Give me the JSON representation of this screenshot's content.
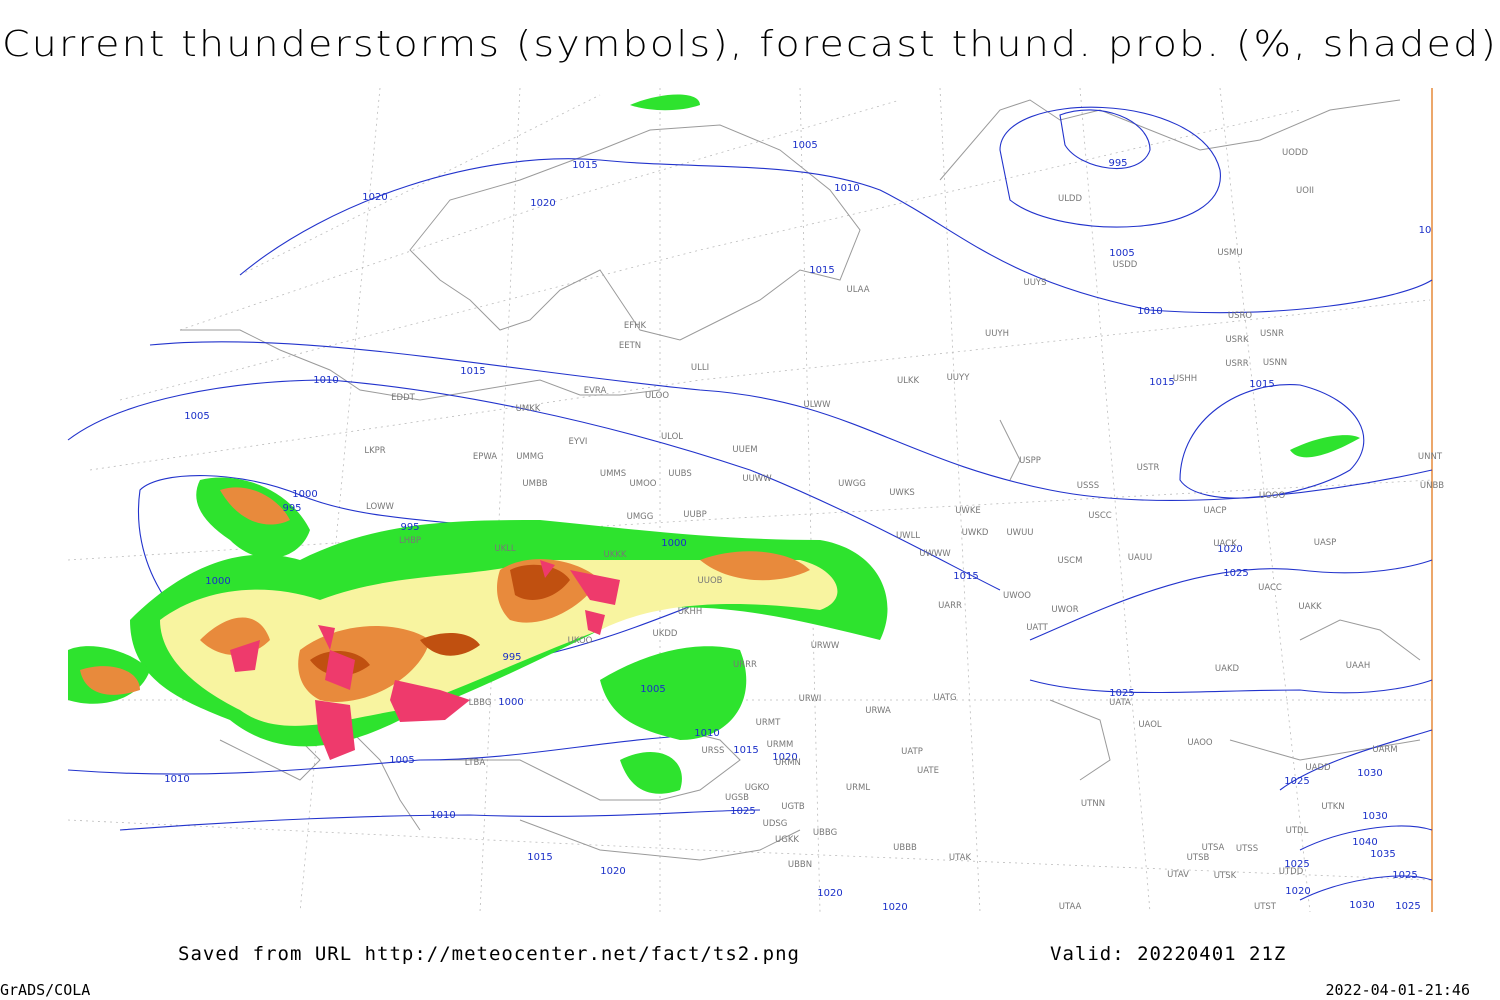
{
  "header": {
    "title": "Current thunderstorms (symbols), forecast thund. prob. (%, shaded)"
  },
  "isobar_labels": [
    "1005",
    "1015",
    "1010",
    "1020",
    "1020",
    "995",
    "1005",
    "1015",
    "1010",
    "1015",
    "1015",
    "1015",
    "1010",
    "1005",
    "1000",
    "995",
    "995",
    "1000",
    "1020",
    "1015",
    "1025",
    "1000",
    "995",
    "1005",
    "1000",
    "1010",
    "1025",
    "1015",
    "1020",
    "1005",
    "1010",
    "1025",
    "1030",
    "1010",
    "1025",
    "1030",
    "1040",
    "1035",
    "1015",
    "1025",
    "1025",
    "1020",
    "1020",
    "1020",
    "1030",
    "1025",
    "1020",
    "10"
  ],
  "stations": [
    "UODD",
    "UOII",
    "ULDD",
    "USMU",
    "USDD",
    "UUYS",
    "ULAA",
    "USRO",
    "USRK",
    "USNR",
    "UUYH",
    "USRR",
    "USNN",
    "USHH",
    "EFHK",
    "EETN",
    "ULLI",
    "ULKK",
    "UUYY",
    "EVRA",
    "ULOO",
    "EDDT",
    "UMKK",
    "ULWW",
    "EYVI",
    "ULOL",
    "UUEM",
    "LKPR",
    "EPWA",
    "UMMG",
    "UMMS",
    "UMOO",
    "UUBS",
    "UUWW",
    "USSS",
    "USTR",
    "UNNT",
    "UNBB",
    "USPP",
    "UMBB",
    "UWGG",
    "UWKS",
    "LOWW",
    "UWKE",
    "UOOO",
    "UACP",
    "UMGG",
    "UUBP",
    "USCC",
    "UWKD",
    "UWUU",
    "UWLL",
    "LHBP",
    "UACK",
    "UASP",
    "UKKK",
    "UKLL",
    "UWWW",
    "USCM",
    "UAUU",
    "UUOB",
    "UKHH",
    "UARR",
    "UWOO",
    "UWOR",
    "UACC",
    "UAKK",
    "UKDD",
    "UKOO",
    "URWW",
    "UATT",
    "UAAH",
    "URRR",
    "UAKD",
    "URWI",
    "UATG",
    "UATA",
    "URWA",
    "URMT",
    "UAOL",
    "UAOO",
    "UARM",
    "URMM",
    "URSS",
    "UATE",
    "URMN",
    "UADD",
    "UATP",
    "URML",
    "UTNN",
    "UTKN",
    "UTDL",
    "UTSA",
    "UTSS",
    "UTSB",
    "UTAK",
    "UTAV",
    "UTSK",
    "UTDD",
    "UTST",
    "UTAA",
    "UBBB",
    "UBBG",
    "UGTB",
    "UGKO",
    "UGSB",
    "UDSG",
    "UGKK",
    "UBBN",
    "LTBA",
    "LBBG"
  ],
  "footer": {
    "source": "Saved from URL  http://meteocenter.net/fact/ts2.png",
    "valid": "Valid: 20220401 21Z",
    "software": "GrADS/COLA",
    "timestamp": "2022-04-01-21:46"
  }
}
